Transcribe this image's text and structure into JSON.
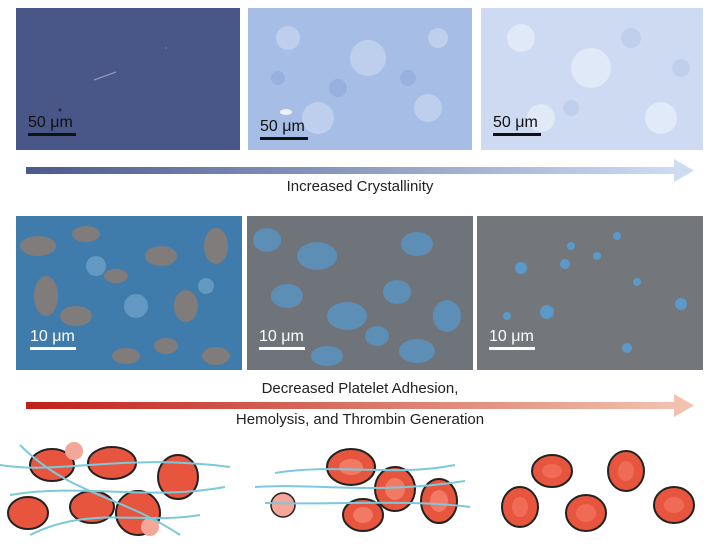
{
  "figure": {
    "optical_row": {
      "panels": [
        {
          "scale_label": "50 μm",
          "base_color": "#4e5d8e"
        },
        {
          "scale_label": "50 μm",
          "base_color": "#a9c0e6"
        },
        {
          "scale_label": "50 μm",
          "base_color": "#cfdcf2"
        }
      ],
      "arrow_label": "Increased Crystallinity",
      "arrow_colors": {
        "start": "#4a5a8c",
        "end": "#cddcf3"
      }
    },
    "sem_row": {
      "panels": [
        {
          "scale_label": "10 μm"
        },
        {
          "scale_label": "10 μm"
        },
        {
          "scale_label": "10 μm"
        }
      ],
      "arrow_label_line1": "Decreased Platelet Adhesion,",
      "arrow_label_line2": "Hemolysis, and Thrombin Generation",
      "arrow_colors": {
        "start": "#c0201a",
        "end": "#f2c2ae"
      }
    },
    "illustrations": [
      {
        "name": "high-adhesion-clot"
      },
      {
        "name": "medium-adhesion-clot"
      },
      {
        "name": "free-red-blood-cells"
      }
    ]
  }
}
